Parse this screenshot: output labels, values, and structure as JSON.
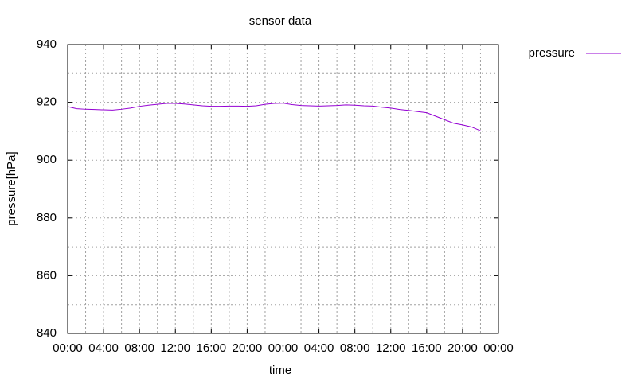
{
  "chart_data": {
    "type": "line",
    "title": "sensor data",
    "x_label": "time",
    "y_label": "pressure[hPa]",
    "x": [
      0,
      1,
      2,
      3,
      4,
      5,
      6,
      7,
      8,
      9,
      10,
      11,
      12,
      13,
      14,
      15,
      16,
      17,
      18,
      19,
      20,
      21,
      22,
      23,
      24,
      25,
      26,
      27,
      28,
      29,
      30,
      31,
      32,
      33,
      34,
      35,
      36,
      37,
      38,
      39,
      40,
      41,
      42,
      43,
      44,
      45,
      46
    ],
    "series": [
      {
        "name": "pressure",
        "color": "#9400d3",
        "values": [
          918.5,
          917.8,
          917.6,
          917.5,
          917.4,
          917.3,
          917.6,
          918.0,
          918.6,
          919.0,
          919.3,
          919.6,
          919.6,
          919.4,
          919.1,
          918.8,
          918.6,
          918.6,
          918.7,
          918.7,
          918.6,
          918.8,
          919.3,
          919.6,
          919.7,
          919.2,
          918.9,
          918.8,
          918.7,
          918.8,
          918.9,
          919.1,
          919.0,
          918.8,
          918.7,
          918.3,
          918.0,
          917.5,
          917.2,
          916.8,
          916.4,
          915.2,
          914.0,
          912.8,
          912.2,
          911.5,
          910.2
        ]
      }
    ],
    "xlim": [
      0,
      48
    ],
    "xticks": [
      {
        "value": 0,
        "label": "00:00"
      },
      {
        "value": 4,
        "label": "04:00"
      },
      {
        "value": 8,
        "label": "08:00"
      },
      {
        "value": 12,
        "label": "12:00"
      },
      {
        "value": 16,
        "label": "16:00"
      },
      {
        "value": 20,
        "label": "20:00"
      },
      {
        "value": 24,
        "label": "00:00"
      },
      {
        "value": 28,
        "label": "04:00"
      },
      {
        "value": 32,
        "label": "08:00"
      },
      {
        "value": 36,
        "label": "12:00"
      },
      {
        "value": 40,
        "label": "16:00"
      },
      {
        "value": 44,
        "label": "20:00"
      },
      {
        "value": 48,
        "label": "00:00"
      }
    ],
    "ylim": [
      840,
      940
    ],
    "yticks": [
      840,
      860,
      880,
      900,
      920,
      940
    ],
    "grid": true,
    "minor_grid": true,
    "legend": "top-right"
  }
}
